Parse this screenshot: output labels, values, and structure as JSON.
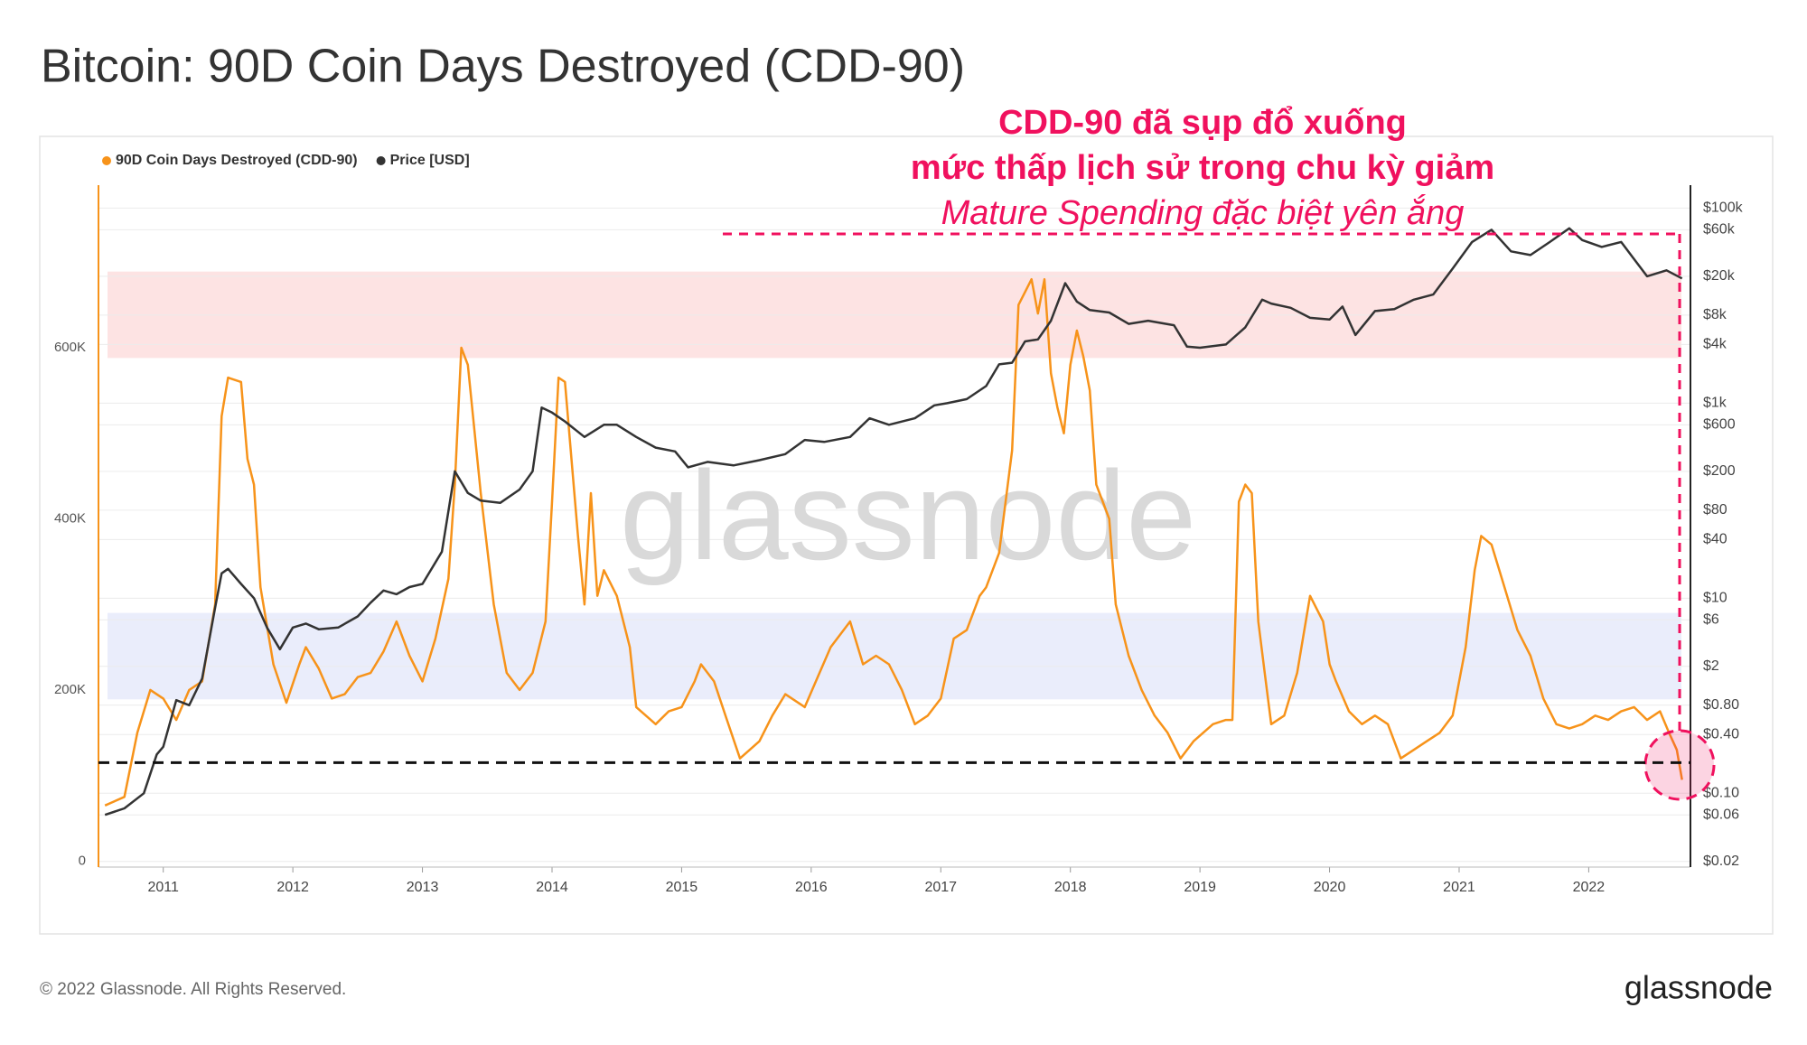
{
  "chart_data": {
    "type": "line",
    "title": "Bitcoin: 90D Coin Days Destroyed (CDD-90)",
    "annotations": [
      "CDD-90 đã sụp đổ xuống",
      "mức thấp lịch sử trong chu kỳ giảm",
      "Mature Spending đặc biệt yên ắng"
    ],
    "watermark": "glassnode",
    "xlim": [
      2010.5,
      2022.785
    ],
    "xticks": [
      2011,
      2012,
      2013,
      2014,
      2015,
      2016,
      2017,
      2018,
      2019,
      2020,
      2021,
      2022
    ],
    "ylim": [
      -7000,
      790000
    ],
    "yticks": [
      0,
      {
        "value": 200000,
        "label": "200K"
      },
      {
        "value": 400000,
        "label": "400K"
      },
      {
        "value": 600000,
        "label": "600K"
      }
    ],
    "y2log": true,
    "y2lim": [
      0.0175,
      172000
    ],
    "y2ticks": [
      {
        "value": 100000,
        "label": "$100k"
      },
      {
        "value": 60000,
        "label": "$60k"
      },
      {
        "value": 20000,
        "label": "$20k"
      },
      {
        "value": 8000,
        "label": "$8k"
      },
      {
        "value": 4000,
        "label": "$4k"
      },
      {
        "value": 1000,
        "label": "$1k"
      },
      {
        "value": 600,
        "label": "$600"
      },
      {
        "value": 200,
        "label": "$200"
      },
      {
        "value": 80,
        "label": "$80"
      },
      {
        "value": 40,
        "label": "$40"
      },
      {
        "value": 10,
        "label": "$10"
      },
      {
        "value": 6,
        "label": "$6"
      },
      {
        "value": 2,
        "label": "$2"
      },
      {
        "value": 0.8,
        "label": "$0.80"
      },
      {
        "value": 0.4,
        "label": "$0.40"
      },
      {
        "value": 0.1,
        "label": "$0.10"
      },
      {
        "value": 0.06,
        "label": "$0.06"
      },
      {
        "value": 0.02,
        "label": "$0.02"
      }
    ],
    "grid": true,
    "legend": "top-left",
    "bands": [
      {
        "range": [
          588000,
          689000
        ],
        "color": "#fde3e3"
      },
      {
        "range": [
          189000,
          290000
        ],
        "color": "#eaedfb"
      }
    ],
    "threshold": 115000,
    "series": [
      {
        "name": "90D Coin Days Destroyed (CDD-90)",
        "color": "#f7931a",
        "axis": "y",
        "x": [
          2010.55,
          2010.7,
          2010.8,
          2010.9,
          2011.0,
          2011.1,
          2011.2,
          2011.3,
          2011.4,
          2011.45,
          2011.5,
          2011.6,
          2011.65,
          2011.7,
          2011.75,
          2011.85,
          2011.95,
          2012.05,
          2012.1,
          2012.2,
          2012.3,
          2012.4,
          2012.5,
          2012.6,
          2012.7,
          2012.8,
          2012.9,
          2013.0,
          2013.1,
          2013.2,
          2013.25,
          2013.3,
          2013.35,
          2013.45,
          2013.55,
          2013.65,
          2013.75,
          2013.85,
          2013.95,
          2014.0,
          2014.05,
          2014.1,
          2014.2,
          2014.25,
          2014.3,
          2014.35,
          2014.4,
          2014.5,
          2014.6,
          2014.65,
          2014.8,
          2014.9,
          2015.0,
          2015.1,
          2015.15,
          2015.25,
          2015.35,
          2015.45,
          2015.6,
          2015.7,
          2015.8,
          2015.95,
          2016.05,
          2016.15,
          2016.25,
          2016.3,
          2016.4,
          2016.5,
          2016.6,
          2016.7,
          2016.8,
          2016.9,
          2017.0,
          2017.1,
          2017.2,
          2017.3,
          2017.35,
          2017.45,
          2017.55,
          2017.6,
          2017.7,
          2017.75,
          2017.8,
          2017.85,
          2017.9,
          2017.95,
          2018.0,
          2018.05,
          2018.1,
          2018.15,
          2018.2,
          2018.3,
          2018.35,
          2018.45,
          2018.55,
          2018.65,
          2018.75,
          2018.85,
          2018.95,
          2019.1,
          2019.2,
          2019.25,
          2019.3,
          2019.35,
          2019.4,
          2019.45,
          2019.5,
          2019.55,
          2019.65,
          2019.75,
          2019.85,
          2019.95,
          2020.0,
          2020.05,
          2020.15,
          2020.25,
          2020.35,
          2020.45,
          2020.55,
          2020.65,
          2020.75,
          2020.85,
          2020.95,
          2021.05,
          2021.12,
          2021.17,
          2021.25,
          2021.35,
          2021.45,
          2021.55,
          2021.65,
          2021.75,
          2021.85,
          2021.95,
          2022.05,
          2022.15,
          2022.25,
          2022.35,
          2022.45,
          2022.55,
          2022.62,
          2022.68,
          2022.72
        ],
        "values": [
          65000,
          75000,
          150000,
          200000,
          190000,
          165000,
          200000,
          210000,
          300000,
          520000,
          565000,
          560000,
          470000,
          440000,
          320000,
          230000,
          185000,
          230000,
          250000,
          225000,
          190000,
          195000,
          215000,
          220000,
          245000,
          280000,
          240000,
          210000,
          260000,
          330000,
          440000,
          600000,
          580000,
          430000,
          300000,
          220000,
          200000,
          220000,
          280000,
          420000,
          565000,
          560000,
          380000,
          300000,
          430000,
          310000,
          340000,
          310000,
          250000,
          180000,
          160000,
          175000,
          180000,
          210000,
          230000,
          210000,
          165000,
          120000,
          140000,
          170000,
          195000,
          180000,
          215000,
          250000,
          270000,
          280000,
          230000,
          240000,
          230000,
          200000,
          160000,
          170000,
          190000,
          260000,
          270000,
          310000,
          320000,
          360000,
          480000,
          650000,
          680000,
          640000,
          680000,
          570000,
          530000,
          500000,
          580000,
          620000,
          590000,
          550000,
          440000,
          400000,
          300000,
          240000,
          200000,
          170000,
          150000,
          120000,
          140000,
          160000,
          165000,
          165000,
          420000,
          440000,
          430000,
          280000,
          220000,
          160000,
          170000,
          220000,
          310000,
          280000,
          230000,
          210000,
          175000,
          160000,
          170000,
          160000,
          120000,
          130000,
          140000,
          150000,
          170000,
          250000,
          340000,
          380000,
          370000,
          320000,
          270000,
          240000,
          190000,
          160000,
          155000,
          160000,
          170000,
          165000,
          175000,
          180000,
          165000,
          175000,
          150000,
          130000,
          95000
        ]
      },
      {
        "name": "Price [USD]",
        "color": "#333333",
        "axis": "y2",
        "x": [
          2010.55,
          2010.7,
          2010.85,
          2010.95,
          2011.0,
          2011.1,
          2011.2,
          2011.3,
          2011.4,
          2011.45,
          2011.5,
          2011.6,
          2011.7,
          2011.8,
          2011.9,
          2012.0,
          2012.1,
          2012.2,
          2012.35,
          2012.5,
          2012.6,
          2012.7,
          2012.8,
          2012.9,
          2013.0,
          2013.15,
          2013.25,
          2013.35,
          2013.45,
          2013.6,
          2013.75,
          2013.85,
          2013.92,
          2014.0,
          2014.1,
          2014.25,
          2014.4,
          2014.5,
          2014.65,
          2014.8,
          2014.95,
          2015.05,
          2015.2,
          2015.4,
          2015.6,
          2015.8,
          2015.95,
          2016.1,
          2016.3,
          2016.45,
          2016.6,
          2016.8,
          2016.95,
          2017.05,
          2017.2,
          2017.35,
          2017.45,
          2017.55,
          2017.65,
          2017.75,
          2017.85,
          2017.96,
          2018.05,
          2018.15,
          2018.3,
          2018.45,
          2018.6,
          2018.8,
          2018.9,
          2019.0,
          2019.2,
          2019.35,
          2019.48,
          2019.55,
          2019.7,
          2019.85,
          2020.0,
          2020.1,
          2020.2,
          2020.35,
          2020.5,
          2020.65,
          2020.8,
          2020.95,
          2021.1,
          2021.25,
          2021.4,
          2021.55,
          2021.7,
          2021.85,
          2021.95,
          2022.1,
          2022.25,
          2022.35,
          2022.45,
          2022.6,
          2022.72
        ],
        "values": [
          0.06,
          0.07,
          0.1,
          0.25,
          0.3,
          0.9,
          0.8,
          1.5,
          8,
          18,
          20,
          14,
          10,
          5,
          3,
          5,
          5.5,
          4.8,
          5,
          6.5,
          9,
          12,
          11,
          13,
          14,
          30,
          200,
          120,
          100,
          95,
          130,
          200,
          900,
          800,
          650,
          450,
          600,
          600,
          450,
          350,
          320,
          220,
          250,
          230,
          260,
          300,
          420,
          400,
          450,
          700,
          600,
          700,
          950,
          1000,
          1100,
          1500,
          2500,
          2600,
          4300,
          4500,
          7000,
          17000,
          11000,
          9000,
          8500,
          6500,
          7000,
          6300,
          3800,
          3700,
          4000,
          6000,
          11500,
          10500,
          9500,
          7500,
          7200,
          9800,
          5000,
          8800,
          9200,
          11500,
          13000,
          24000,
          45000,
          60000,
          36000,
          33000,
          45000,
          62000,
          47000,
          40000,
          45000,
          30000,
          20000,
          23000,
          19000
        ]
      }
    ]
  },
  "footer": {
    "copyright": "© 2022 Glassnode. All Rights Reserved.",
    "logo": "glassnode"
  }
}
